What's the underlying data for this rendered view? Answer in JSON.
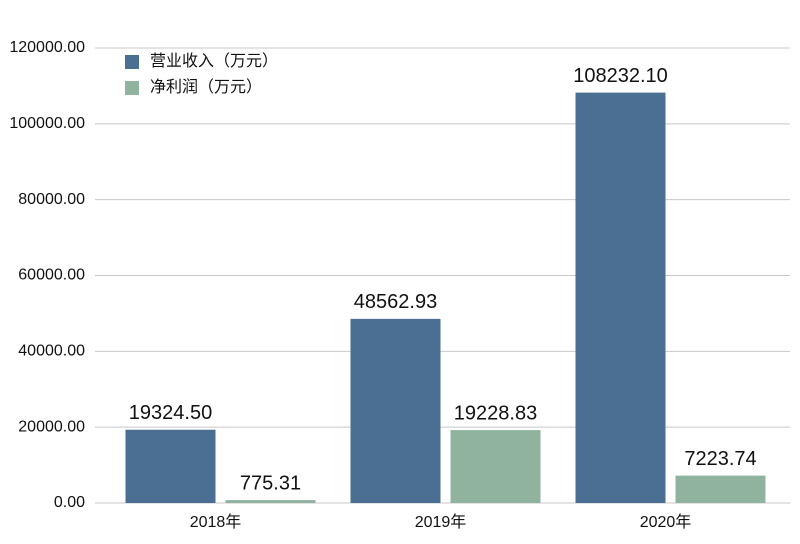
{
  "chart_data": {
    "type": "bar",
    "categories": [
      "2018年",
      "2019年",
      "2020年"
    ],
    "series": [
      {
        "name": "营业收入（万元）",
        "color": "#4a6f93",
        "values": [
          19324.5,
          48562.93,
          108232.1
        ],
        "value_labels": [
          "19324.50",
          "48562.93",
          "108232.10"
        ]
      },
      {
        "name": "净利润（万元）",
        "color": "#8fb39e",
        "values": [
          775.31,
          19228.83,
          7223.74
        ],
        "value_labels": [
          "775.31",
          "19228.83",
          "7223.74"
        ]
      }
    ],
    "ylim": [
      0,
      120000
    ],
    "yticks": [
      {
        "value": 0,
        "label": "0.00"
      },
      {
        "value": 20000,
        "label": "20000.00"
      },
      {
        "value": 40000,
        "label": "40000.00"
      },
      {
        "value": 60000,
        "label": "60000.00"
      },
      {
        "value": 80000,
        "label": "80000.00"
      },
      {
        "value": 100000,
        "label": "100000.00"
      },
      {
        "value": 120000,
        "label": "120000.00"
      }
    ],
    "grid": true,
    "legend": "top-left"
  }
}
